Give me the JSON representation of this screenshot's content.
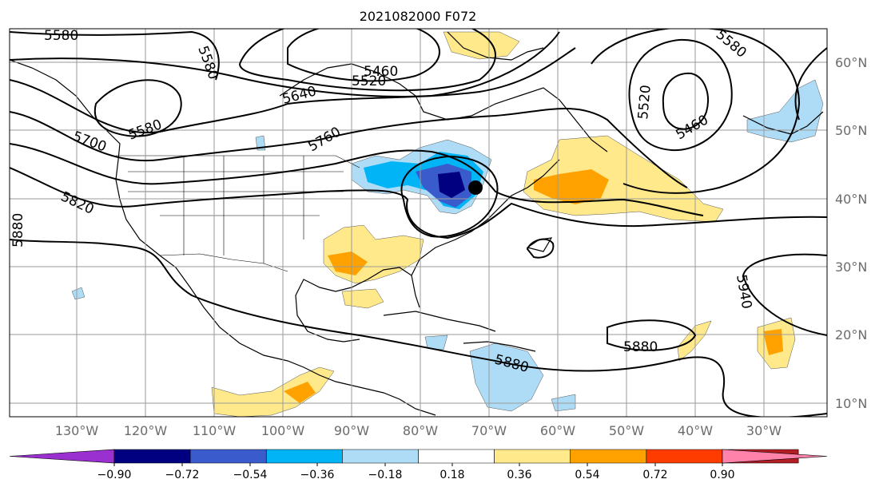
{
  "title": "2021082000 F072",
  "longitude_labels": [
    "130°W",
    "120°W",
    "110°W",
    "100°W",
    "90°W",
    "80°W",
    "70°W",
    "60°W",
    "50°W",
    "40°W",
    "30°W"
  ],
  "latitude_labels": [
    "60°N",
    "50°N",
    "40°N",
    "30°N",
    "20°N",
    "10°N"
  ],
  "contour_labels": [
    "5580",
    "5580",
    "5460",
    "5520",
    "5640",
    "5580",
    "5700",
    "5760",
    "5820",
    "5880",
    "5580",
    "5520",
    "5460",
    "5940",
    "5880",
    "5880"
  ],
  "colorbar": {
    "tick_labels": [
      "−0.90",
      "−0.72",
      "−0.54",
      "−0.36",
      "−0.18",
      "0.18",
      "0.36",
      "0.54",
      "0.72",
      "0.90"
    ],
    "colors": [
      "#9b30d0",
      "#000080",
      "#3a5bcc",
      "#00b4f5",
      "#aedcf7",
      "#ffffff",
      "#ffe98a",
      "#ffa200",
      "#ff3c00",
      "#b21e24",
      "#ff82aa"
    ]
  },
  "anomaly_colors": {
    "light_blue": "#aedcf7",
    "blue": "#00b4f5",
    "mid_blue": "#3a5bcc",
    "navy": "#000080",
    "light_yellow": "#ffe98a",
    "orange": "#ffa200",
    "red": "#ff3c00"
  },
  "storm_marker": "black-dot"
}
